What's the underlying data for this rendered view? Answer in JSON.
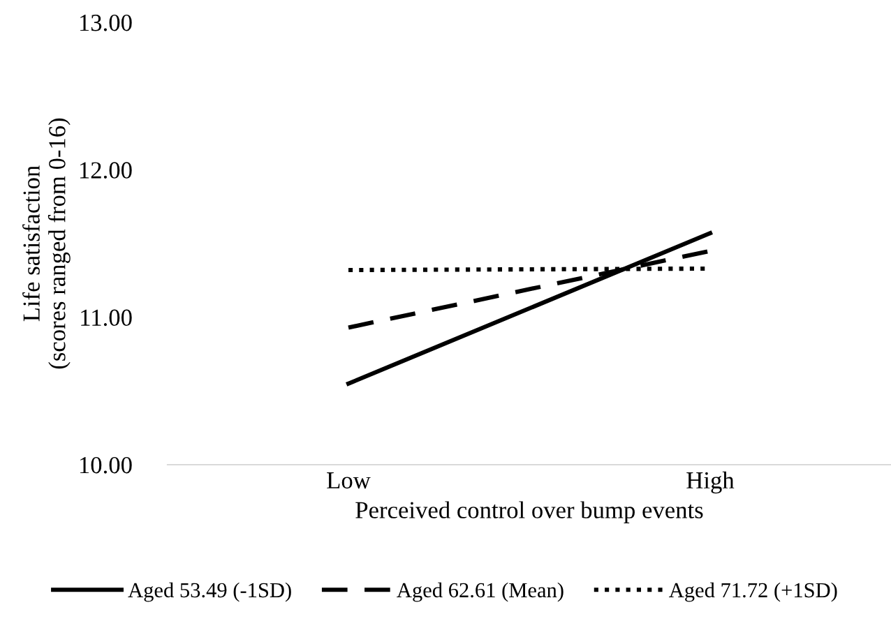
{
  "chart_data": {
    "type": "line",
    "xlabel": "Perceived control over bump events",
    "ylabel": "Life satisfaction\n(scores ranged from 0-16)",
    "categories": [
      "Low",
      "High"
    ],
    "series": [
      {
        "name": "Aged 53.49 (-1SD)",
        "color": "#000000",
        "line_style": "solid",
        "values": [
          10.55,
          11.57
        ]
      },
      {
        "name": "Aged 62.61 (Mean)",
        "color": "#000000",
        "line_style": "dashed",
        "values": [
          10.93,
          11.45
        ]
      },
      {
        "name": "Aged 71.72 (+1SD)",
        "color": "#000000",
        "line_style": "dotted",
        "values": [
          11.32,
          11.33
        ]
      }
    ],
    "ylim": [
      10,
      13
    ],
    "yticks": [
      {
        "value": 10,
        "label": "10.00"
      },
      {
        "value": 11,
        "label": "11.00"
      },
      {
        "value": 12,
        "label": "12.00"
      },
      {
        "value": 13,
        "label": "13.00"
      }
    ],
    "grid": false,
    "legend": "bottom"
  }
}
